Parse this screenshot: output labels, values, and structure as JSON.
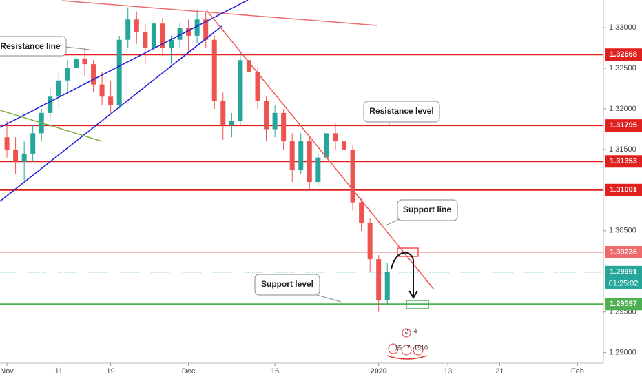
{
  "chart_data": {
    "type": "candlestick",
    "up_color": "#26a69a",
    "down_color": "#ef5350",
    "xlim": [
      -0.8,
      69
    ],
    "ylim": [
      1.2887,
      1.3334
    ],
    "xticks": [
      {
        "value": 0,
        "label": "Nov"
      },
      {
        "value": 6,
        "label": "11"
      },
      {
        "value": 12,
        "label": "19"
      },
      {
        "value": 21,
        "label": "Dec"
      },
      {
        "value": 31,
        "label": "16"
      },
      {
        "value": 43,
        "label": "2020"
      },
      {
        "value": 51,
        "label": "13"
      },
      {
        "value": 57,
        "label": "21"
      },
      {
        "value": 66,
        "label": "Feb"
      }
    ],
    "yticks": [
      {
        "value": 1.29,
        "label": "1.29000"
      },
      {
        "value": 1.295,
        "label": "1.29500"
      },
      {
        "value": 1.305,
        "label": "1.30500"
      },
      {
        "value": 1.315,
        "label": "1.31500"
      },
      {
        "value": 1.32,
        "label": "1.32000"
      },
      {
        "value": 1.325,
        "label": "1.32500"
      },
      {
        "value": 1.33,
        "label": "1.33000"
      }
    ],
    "x": [
      0,
      1,
      2,
      3,
      4,
      5,
      6,
      7,
      8,
      9,
      10,
      11,
      12,
      13,
      14,
      15,
      16,
      17,
      18,
      19,
      20,
      21,
      22,
      23,
      24,
      25,
      26,
      27,
      28,
      29,
      30,
      31,
      32,
      33,
      34,
      35,
      36,
      37,
      38,
      39,
      40,
      41,
      42,
      43,
      44
    ],
    "open": [
      1.3165,
      1.315,
      1.3135,
      1.3145,
      1.317,
      1.3195,
      1.3215,
      1.3235,
      1.325,
      1.3262,
      1.3255,
      1.323,
      1.3215,
      1.3205,
      1.3285,
      1.331,
      1.3295,
      1.3275,
      1.3305,
      1.3275,
      1.3285,
      1.33,
      1.329,
      1.331,
      1.3285,
      1.321,
      1.318,
      1.3185,
      1.326,
      1.3245,
      1.321,
      1.3175,
      1.3195,
      1.316,
      1.3125,
      1.316,
      1.311,
      1.314,
      1.317,
      1.316,
      1.315,
      1.3085,
      1.306,
      1.3015,
      1.2965
    ],
    "high": [
      1.3185,
      1.3165,
      1.316,
      1.318,
      1.32,
      1.3225,
      1.3245,
      1.326,
      1.3275,
      1.3275,
      1.326,
      1.3245,
      1.3235,
      1.329,
      1.3325,
      1.332,
      1.3305,
      1.3318,
      1.3312,
      1.329,
      1.3305,
      1.331,
      1.3322,
      1.332,
      1.329,
      1.322,
      1.3195,
      1.327,
      1.3265,
      1.325,
      1.3215,
      1.3205,
      1.32,
      1.317,
      1.317,
      1.3165,
      1.3145,
      1.318,
      1.3182,
      1.317,
      1.3155,
      1.309,
      1.3065,
      1.302,
      1.301
    ],
    "low": [
      1.314,
      1.312,
      1.3112,
      1.3135,
      1.316,
      1.3185,
      1.32,
      1.322,
      1.3235,
      1.324,
      1.322,
      1.3205,
      1.3195,
      1.32,
      1.3275,
      1.328,
      1.3255,
      1.327,
      1.3265,
      1.3255,
      1.3275,
      1.327,
      1.328,
      1.3275,
      1.32,
      1.3162,
      1.3165,
      1.318,
      1.323,
      1.32,
      1.316,
      1.3165,
      1.315,
      1.311,
      1.312,
      1.31,
      1.3105,
      1.3135,
      1.315,
      1.3135,
      1.3075,
      1.305,
      1.3,
      1.295,
      1.2958
    ],
    "close": [
      1.315,
      1.3135,
      1.3145,
      1.317,
      1.3195,
      1.3215,
      1.3235,
      1.325,
      1.3262,
      1.3255,
      1.323,
      1.3215,
      1.3205,
      1.3285,
      1.331,
      1.3295,
      1.3275,
      1.3305,
      1.3275,
      1.3285,
      1.33,
      1.329,
      1.331,
      1.3285,
      1.321,
      1.318,
      1.3185,
      1.326,
      1.3245,
      1.321,
      1.3175,
      1.3195,
      1.316,
      1.3125,
      1.316,
      1.311,
      1.314,
      1.317,
      1.316,
      1.315,
      1.3085,
      1.306,
      1.3015,
      1.2965,
      1.29991
    ],
    "levels": [
      {
        "value": 1.32668,
        "color": "#e0201f",
        "style": "solid"
      },
      {
        "value": 1.31795,
        "color": "#e0201f",
        "style": "solid"
      },
      {
        "value": 1.31353,
        "color": "#e0201f",
        "style": "solid"
      },
      {
        "value": 1.31001,
        "color": "#e0201f",
        "style": "solid"
      },
      {
        "value": 1.30236,
        "color": "#ef6b6b",
        "style": "thin"
      },
      {
        "value": 1.29991,
        "color": "#26a69a",
        "style": "dotted"
      },
      {
        "value": 1.29597,
        "color": "#4caf50",
        "style": "solid"
      }
    ],
    "countdown": "01:25:02",
    "annotations": [
      "Resistance line",
      "Resistance level",
      "Support line",
      "Support level"
    ],
    "events": [
      2,
      4,
      15,
      7,
      15,
      10
    ]
  }
}
